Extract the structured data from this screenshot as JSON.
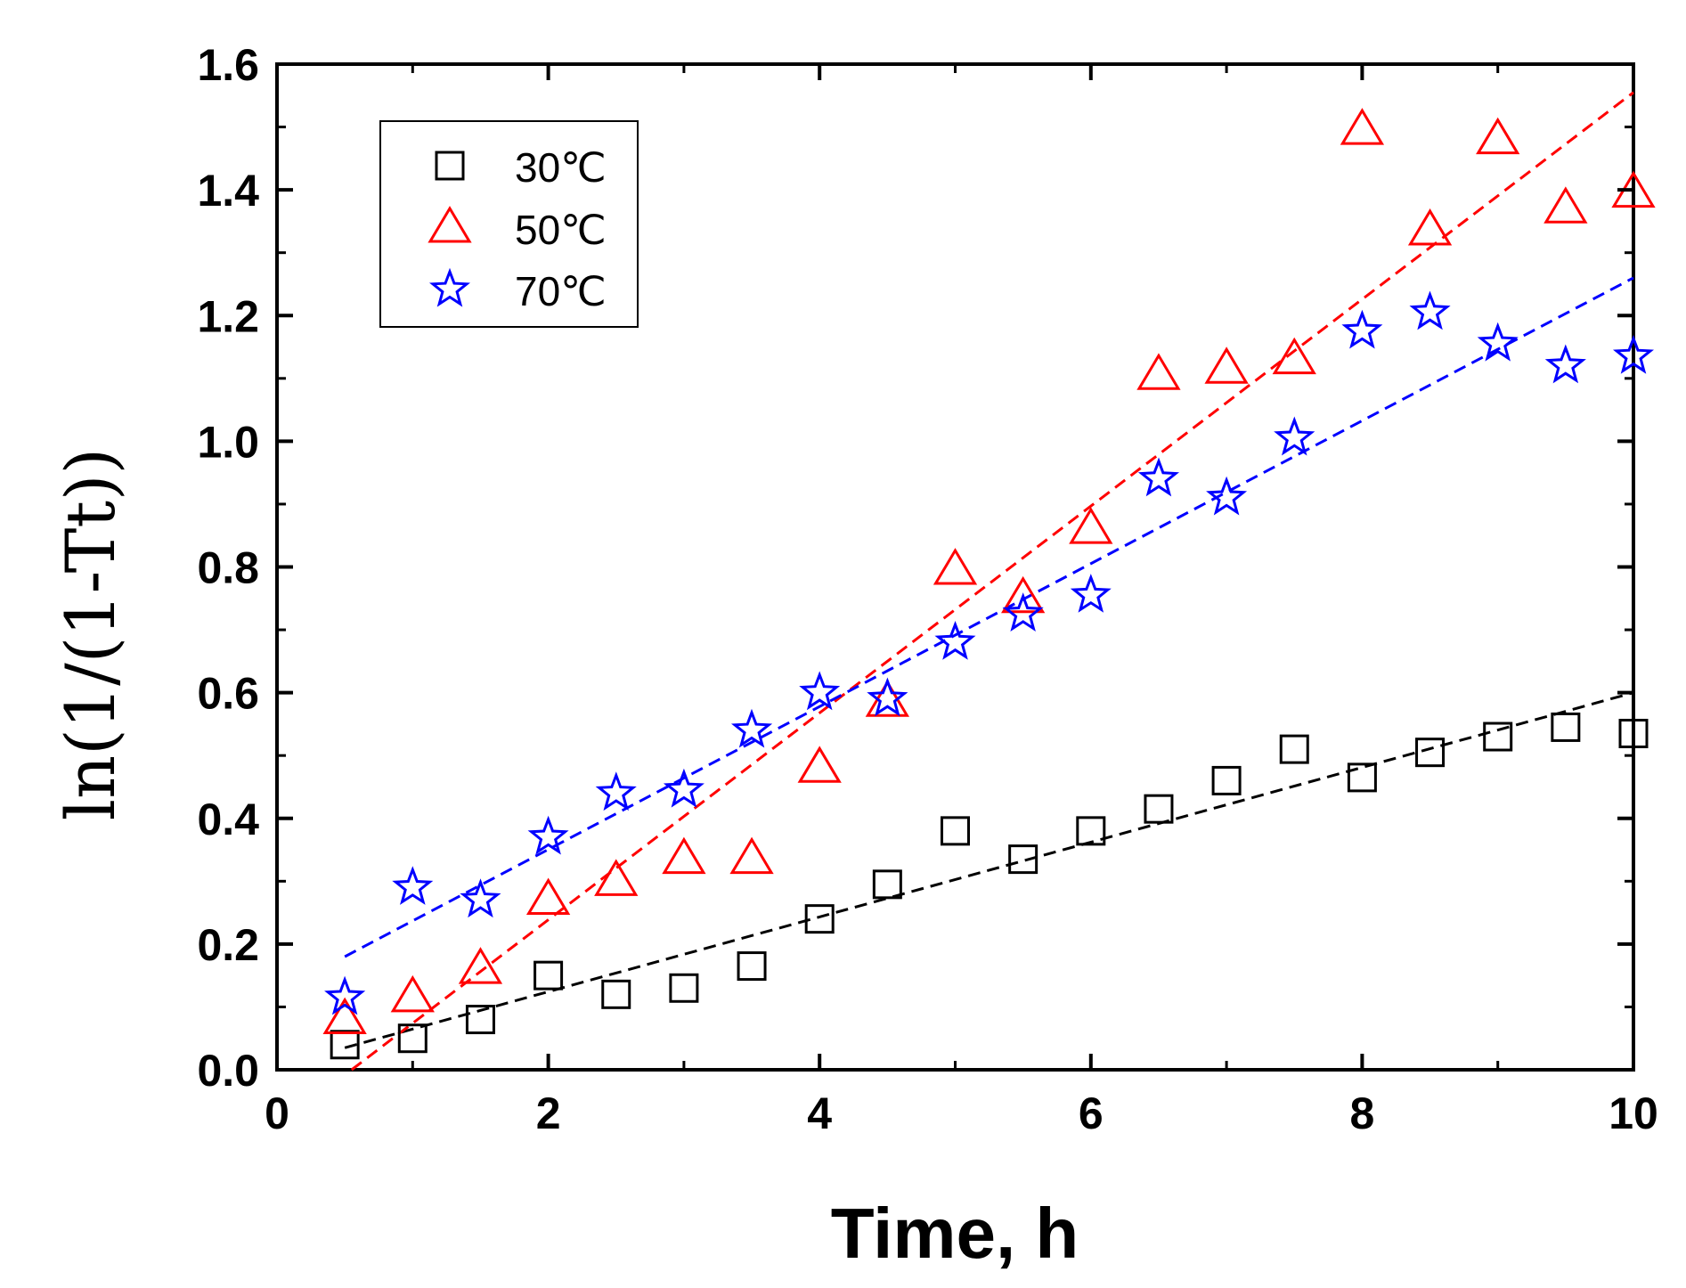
{
  "chart_data": {
    "type": "scatter",
    "title": "",
    "xlabel": "Time, h",
    "ylabel": "ln(1/(1-Tt))",
    "xlim": [
      0,
      10
    ],
    "ylim": [
      0.0,
      1.6
    ],
    "xticks": [
      0,
      2,
      4,
      6,
      8,
      10
    ],
    "xtick_labels": [
      "0",
      "2",
      "4",
      "6",
      "8",
      "10"
    ],
    "yticks": [
      0.0,
      0.2,
      0.4,
      0.6,
      0.8,
      1.0,
      1.2,
      1.4,
      1.6
    ],
    "ytick_labels": [
      "0.0",
      "0.2",
      "0.4",
      "0.6",
      "0.8",
      "1.0",
      "1.2",
      "1.4",
      "1.6"
    ],
    "grid": false,
    "legend_position": "top-left",
    "series": [
      {
        "name": "30℃",
        "marker": "square",
        "color": "#000000",
        "x": [
          0.5,
          1.0,
          1.5,
          2.0,
          2.5,
          3.0,
          3.5,
          4.0,
          4.5,
          5.0,
          5.5,
          6.0,
          6.5,
          7.0,
          7.5,
          8.0,
          8.5,
          9.0,
          9.5,
          10.0
        ],
        "y": [
          0.04,
          0.05,
          0.08,
          0.15,
          0.12,
          0.13,
          0.165,
          0.24,
          0.295,
          0.38,
          0.335,
          0.38,
          0.415,
          0.46,
          0.51,
          0.465,
          0.505,
          0.53,
          0.545,
          0.535
        ],
        "fit": {
          "x": [
            0.5,
            10.0
          ],
          "y": [
            0.035,
            0.6
          ]
        }
      },
      {
        "name": "50℃",
        "marker": "triangle",
        "color": "#ff0000",
        "x": [
          0.5,
          1.0,
          1.5,
          2.0,
          2.5,
          3.0,
          3.5,
          4.0,
          4.5,
          5.0,
          5.5,
          6.0,
          6.5,
          7.0,
          7.5,
          8.0,
          8.5,
          9.0,
          9.5,
          10.0
        ],
        "y": [
          0.08,
          0.115,
          0.16,
          0.27,
          0.3,
          0.335,
          0.335,
          0.48,
          0.585,
          0.795,
          0.75,
          0.86,
          1.105,
          1.115,
          1.13,
          1.495,
          1.335,
          1.48,
          1.37,
          1.395
        ],
        "fit": {
          "x": [
            0.55,
            10.0
          ],
          "y": [
            0.0,
            1.555
          ]
        }
      },
      {
        "name": "70℃",
        "marker": "star",
        "color": "#0000ff",
        "x": [
          0.5,
          1.0,
          1.5,
          2.0,
          2.5,
          3.0,
          3.5,
          4.0,
          4.5,
          5.0,
          5.5,
          6.0,
          6.5,
          7.0,
          7.5,
          8.0,
          8.5,
          9.0,
          9.5,
          10.0
        ],
        "y": [
          0.115,
          0.29,
          0.27,
          0.37,
          0.44,
          0.445,
          0.54,
          0.6,
          0.59,
          0.68,
          0.725,
          0.755,
          0.94,
          0.91,
          1.005,
          1.175,
          1.205,
          1.155,
          1.12,
          1.135
        ],
        "fit": {
          "x": [
            0.5,
            10.0
          ],
          "y": [
            0.18,
            1.26
          ]
        }
      }
    ]
  }
}
